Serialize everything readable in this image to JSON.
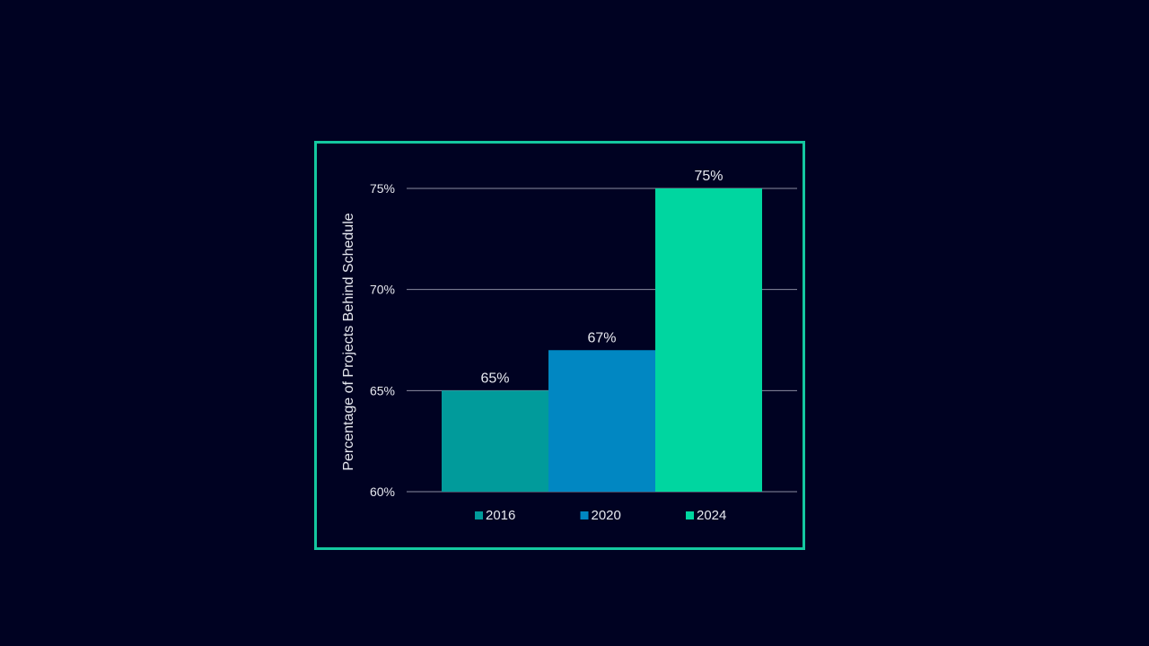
{
  "chart_data": {
    "type": "bar",
    "categories": [
      "2016",
      "2020",
      "2024"
    ],
    "values": [
      65,
      67,
      75
    ],
    "data_labels": [
      "65%",
      "67%",
      "75%"
    ],
    "colors": [
      "#019b9b",
      "#0187c2",
      "#00d6a0"
    ],
    "ylabel": "Percentage of Projects Behind Schedule",
    "ylim": [
      60,
      75
    ],
    "yticks": [
      60,
      65,
      70,
      75
    ],
    "ytick_labels": [
      "60%",
      "65%",
      "70%",
      "75%"
    ],
    "legend": [
      "2016",
      "2020",
      "2024"
    ],
    "legend_position": "bottom",
    "grid": true
  },
  "style": {
    "background": "#000222",
    "frame_color": "#14c8a0",
    "gridline_color": "#8a8ca0",
    "text_color": "#e6e8ef"
  }
}
